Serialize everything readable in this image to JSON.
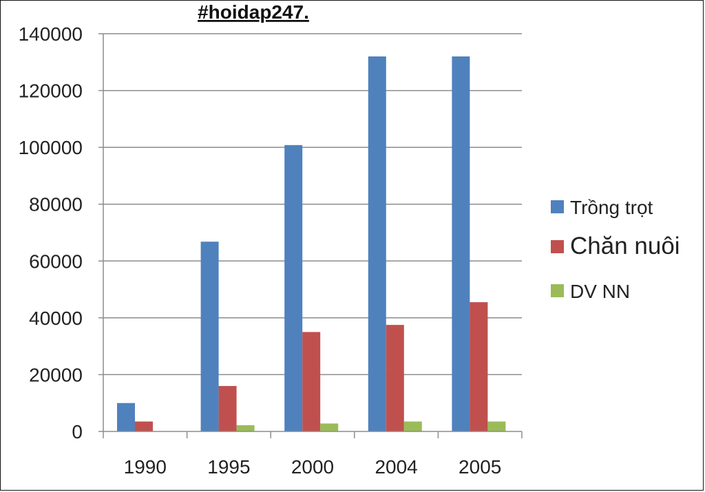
{
  "chart_data": {
    "type": "bar",
    "title": "#hoidap247.",
    "categories": [
      "1990",
      "1995",
      "2000",
      "2004",
      "2005"
    ],
    "series": [
      {
        "name": "Trồng trọt",
        "color": "#4f81bd",
        "values": [
          10000,
          66800,
          100800,
          132000,
          132000
        ]
      },
      {
        "name": "Chăn nuôi",
        "color": "#c0504d",
        "values": [
          3500,
          16000,
          35000,
          37500,
          45500
        ]
      },
      {
        "name": "DV NN",
        "color": "#9bbb59",
        "values": [
          0,
          2200,
          2800,
          3500,
          3500
        ]
      }
    ],
    "ylim": [
      0,
      140000
    ],
    "yticks": [
      "0",
      "20000",
      "40000",
      "60000",
      "80000",
      "100000",
      "120000",
      "140000"
    ],
    "grid": true,
    "legend_position": "right"
  }
}
